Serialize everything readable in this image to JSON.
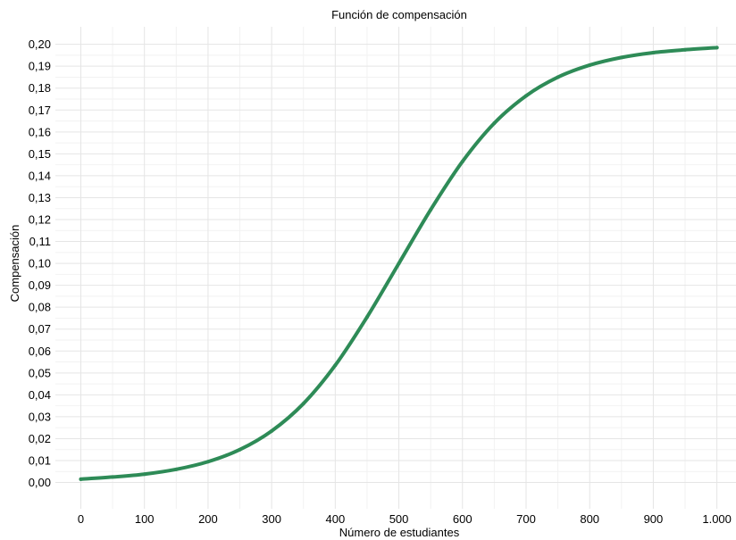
{
  "chart_data": {
    "type": "line",
    "title": "Función de compensación",
    "xlabel": "Número de estudiantes",
    "ylabel": "Compensación",
    "xlim": [
      -40,
      1030
    ],
    "ylim": [
      -0.012,
      0.208
    ],
    "x_ticks": [
      {
        "value": 0,
        "label": "0"
      },
      {
        "value": 100,
        "label": "100"
      },
      {
        "value": 200,
        "label": "200"
      },
      {
        "value": 300,
        "label": "300"
      },
      {
        "value": 400,
        "label": "400"
      },
      {
        "value": 500,
        "label": "500"
      },
      {
        "value": 600,
        "label": "600"
      },
      {
        "value": 700,
        "label": "700"
      },
      {
        "value": 800,
        "label": "800"
      },
      {
        "value": 900,
        "label": "900"
      },
      {
        "value": 1000,
        "label": "1.000"
      }
    ],
    "y_ticks": [
      {
        "value": 0.0,
        "label": "0,00"
      },
      {
        "value": 0.01,
        "label": "0,01"
      },
      {
        "value": 0.02,
        "label": "0,02"
      },
      {
        "value": 0.03,
        "label": "0,03"
      },
      {
        "value": 0.04,
        "label": "0,04"
      },
      {
        "value": 0.05,
        "label": "0,05"
      },
      {
        "value": 0.06,
        "label": "0,06"
      },
      {
        "value": 0.07,
        "label": "0,07"
      },
      {
        "value": 0.08,
        "label": "0,08"
      },
      {
        "value": 0.09,
        "label": "0,09"
      },
      {
        "value": 0.1,
        "label": "0,10"
      },
      {
        "value": 0.11,
        "label": "0,11"
      },
      {
        "value": 0.12,
        "label": "0,12"
      },
      {
        "value": 0.13,
        "label": "0,13"
      },
      {
        "value": 0.14,
        "label": "0,14"
      },
      {
        "value": 0.15,
        "label": "0,15"
      },
      {
        "value": 0.16,
        "label": "0,16"
      },
      {
        "value": 0.17,
        "label": "0,17"
      },
      {
        "value": 0.18,
        "label": "0,18"
      },
      {
        "value": 0.19,
        "label": "0,19"
      },
      {
        "value": 0.2,
        "label": "0,20"
      }
    ],
    "grid": true,
    "legend": "none",
    "series": [
      {
        "color": "#2e8b57",
        "x": [
          0,
          50,
          100,
          150,
          200,
          250,
          300,
          350,
          400,
          450,
          500,
          550,
          600,
          650,
          700,
          750,
          800,
          850,
          900,
          950,
          1000
        ],
        "y": [
          0.0015,
          0.0025,
          0.0038,
          0.006,
          0.0095,
          0.015,
          0.0235,
          0.036,
          0.0535,
          0.0755,
          0.1,
          0.1245,
          0.1465,
          0.164,
          0.1765,
          0.185,
          0.1905,
          0.194,
          0.1962,
          0.1975,
          0.1985
        ]
      }
    ]
  }
}
